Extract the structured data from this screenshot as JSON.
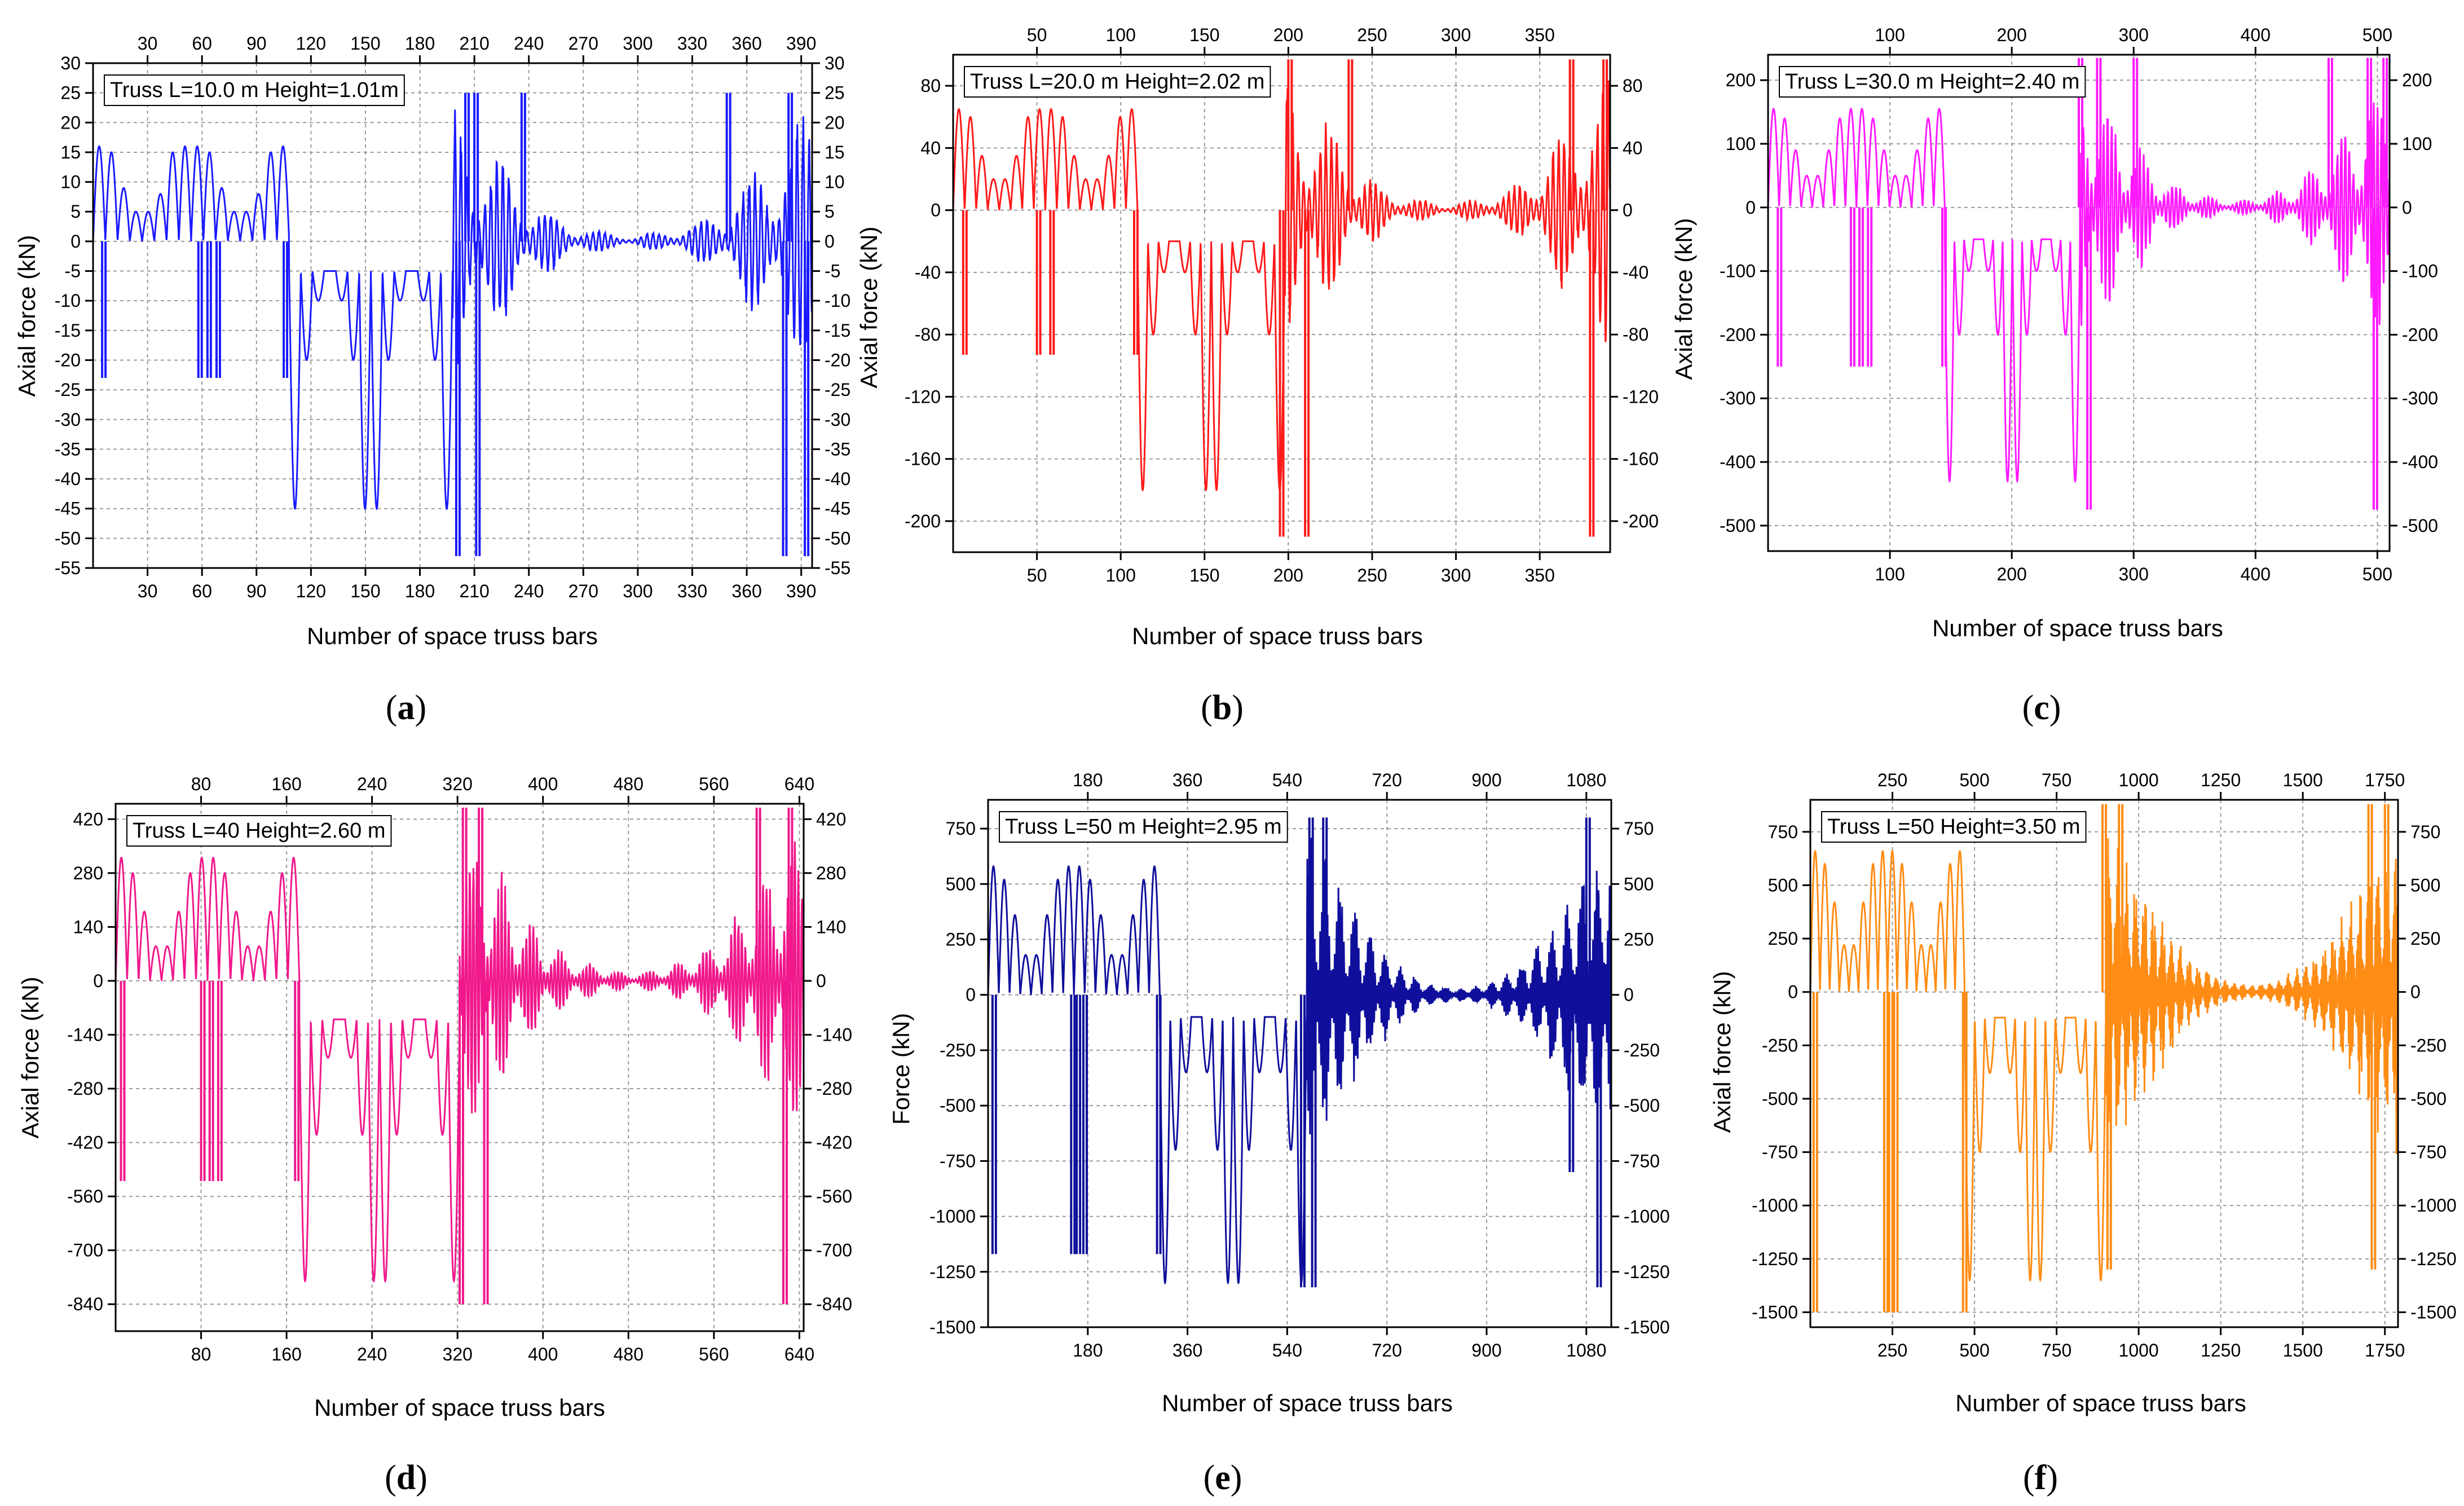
{
  "figure": {
    "panels": [
      "a",
      "b",
      "c",
      "d",
      "e",
      "f"
    ]
  },
  "chart_data": [
    {
      "id": "a",
      "type": "line",
      "color": "#1a1aff",
      "legend": "Truss L=10.0 m Height=1.01m",
      "panel_label": "a",
      "xlabel": "Number of space truss bars",
      "ylabel": "Axial force (kN)",
      "xlim": [
        0,
        396
      ],
      "ylim": [
        -55,
        30
      ],
      "xticks": [
        30,
        60,
        90,
        120,
        150,
        180,
        210,
        240,
        270,
        300,
        330,
        360,
        390
      ],
      "bottom_xticks": [
        30,
        60,
        90,
        120,
        150,
        180,
        210,
        240,
        270,
        300,
        330,
        360,
        390
      ],
      "top_xticks": [
        30,
        60,
        90,
        120,
        150,
        180,
        210,
        240,
        270,
        300,
        330,
        360,
        390
      ],
      "yticks": [
        30,
        25,
        20,
        15,
        10,
        5,
        0,
        -5,
        -10,
        -15,
        -20,
        -25,
        -30,
        -35,
        -40,
        -45,
        -50,
        -55
      ],
      "ytick_labels": [
        "30",
        "25",
        "20",
        "15",
        "10",
        "5",
        "0",
        "-5",
        "-10",
        "-15",
        "-20",
        "-25",
        "-30",
        "-35",
        "-40",
        "-45",
        "-50",
        "-55"
      ],
      "segments": [
        {
          "kind": "bumps",
          "x": [
            0,
            108
          ],
          "peaks": [
            16,
            15,
            9,
            5,
            5,
            8,
            15,
            16,
            16,
            15,
            9,
            5,
            5,
            8,
            15,
            16
          ],
          "base": 0
        },
        {
          "kind": "bumps",
          "x": [
            108,
            198
          ],
          "peaks": [
            -45,
            -20,
            -10,
            -5,
            -10,
            -20,
            -45,
            -45,
            -20,
            -10,
            -5,
            -10,
            -20,
            -45
          ],
          "base": -5,
          "invert": true
        },
        {
          "kind": "osc",
          "x": [
            198,
            396
          ],
          "amp": [
            25,
            18,
            10,
            4,
            2,
            1,
            2,
            4,
            10,
            18,
            25
          ]
        }
      ],
      "spikes": [
        [
          5,
          -23
        ],
        [
          58,
          -23
        ],
        [
          63,
          -23
        ],
        [
          68,
          -23
        ],
        [
          105,
          -23
        ],
        [
          200,
          -53
        ],
        [
          205,
          25
        ],
        [
          210,
          25
        ],
        [
          211,
          -53
        ],
        [
          236,
          25
        ],
        [
          349,
          25
        ],
        [
          380,
          -53
        ],
        [
          383,
          25
        ],
        [
          392,
          -53
        ]
      ]
    },
    {
      "id": "b",
      "type": "line",
      "color": "#ff1a1a",
      "legend": "Truss L=20.0 m Height=2.02 m",
      "panel_label": "b",
      "xlabel": "Number of space truss bars",
      "ylabel": "Axial force (kN)",
      "xlim": [
        0,
        392
      ],
      "ylim": [
        -220,
        100
      ],
      "bottom_xticks": [
        50,
        100,
        150,
        200,
        250,
        300,
        350
      ],
      "top_xticks": [
        50,
        100,
        150,
        200,
        250,
        300,
        350
      ],
      "yticks": [
        80,
        40,
        0,
        -40,
        -80,
        -120,
        -160,
        -200
      ],
      "ytick_labels": [
        "80",
        "40",
        "0",
        "-40",
        "-80",
        "-120",
        "-160",
        "-200"
      ],
      "segments": [
        {
          "kind": "bumps",
          "x": [
            0,
            110
          ],
          "peaks": [
            65,
            60,
            35,
            20,
            20,
            35,
            60,
            65,
            65,
            60,
            35,
            20,
            20,
            35,
            60,
            65
          ],
          "base": 0
        },
        {
          "kind": "bumps",
          "x": [
            110,
            198
          ],
          "peaks": [
            -180,
            -80,
            -40,
            -20,
            -40,
            -80,
            -180,
            -180,
            -80,
            -40,
            -20,
            -40,
            -80,
            -180
          ],
          "base": -20,
          "invert": true
        },
        {
          "kind": "osc",
          "x": [
            198,
            392
          ],
          "amp": [
            95,
            70,
            40,
            15,
            8,
            4,
            8,
            15,
            40,
            70,
            95
          ]
        }
      ],
      "spikes": [
        [
          6,
          -93
        ],
        [
          50,
          -93
        ],
        [
          58,
          -93
        ],
        [
          108,
          -93
        ],
        [
          195,
          -210
        ],
        [
          200,
          97
        ],
        [
          210,
          -210
        ],
        [
          236,
          97
        ],
        [
          368,
          97
        ],
        [
          380,
          -210
        ],
        [
          388,
          97
        ]
      ]
    },
    {
      "id": "c",
      "type": "line",
      "color": "#ff1aff",
      "legend": "Truss L=30.0 m Height=2.40 m",
      "panel_label": "c",
      "xlabel": "Number of space truss bars",
      "ylabel": "Axial force (kN)",
      "xlim": [
        0,
        510
      ],
      "ylim": [
        -540,
        240
      ],
      "bottom_xticks": [
        100,
        200,
        300,
        400,
        500
      ],
      "top_xticks": [
        100,
        200,
        300,
        400,
        500
      ],
      "yticks": [
        200,
        100,
        0,
        -100,
        -200,
        -300,
        -400,
        -500
      ],
      "ytick_labels": [
        "200",
        "100",
        "0",
        "-100",
        "-200",
        "-300",
        "-400",
        "-500"
      ],
      "segments": [
        {
          "kind": "bumps",
          "x": [
            0,
            145
          ],
          "peaks": [
            155,
            140,
            90,
            50,
            50,
            90,
            140,
            155,
            155,
            140,
            90,
            50,
            50,
            90,
            140,
            155
          ],
          "base": 0
        },
        {
          "kind": "bumps",
          "x": [
            145,
            256
          ],
          "peaks": [
            -430,
            -200,
            -100,
            -50,
            -100,
            -200,
            -430,
            -430,
            -200,
            -100,
            -50,
            -100,
            -200,
            -430
          ],
          "base": -50,
          "invert": true
        },
        {
          "kind": "osc",
          "x": [
            256,
            510
          ],
          "amp": [
            235,
            170,
            100,
            40,
            20,
            10,
            20,
            40,
            100,
            170,
            235
          ]
        }
      ],
      "spikes": [
        [
          8,
          -250
        ],
        [
          68,
          -250
        ],
        [
          75,
          -250
        ],
        [
          82,
          -250
        ],
        [
          143,
          -250
        ],
        [
          255,
          235
        ],
        [
          262,
          -475
        ],
        [
          270,
          235
        ],
        [
          300,
          235
        ],
        [
          460,
          235
        ],
        [
          492,
          235
        ],
        [
          497,
          -475
        ],
        [
          505,
          235
        ]
      ]
    },
    {
      "id": "d",
      "type": "line",
      "color": "#f0188c",
      "legend": "Truss L=40 Height=2.60 m",
      "panel_label": "d",
      "xlabel": "Number of space truss bars",
      "ylabel": "Axial force (kN)",
      "xlim": [
        0,
        644
      ],
      "ylim": [
        -910,
        460
      ],
      "bottom_xticks": [
        80,
        160,
        240,
        320,
        400,
        480,
        560,
        640
      ],
      "top_xticks": [
        80,
        160,
        240,
        320,
        400,
        480,
        560,
        640
      ],
      "yticks": [
        420,
        280,
        140,
        0,
        -140,
        -280,
        -420,
        -560,
        -700,
        -840
      ],
      "ytick_labels": [
        "420",
        "280",
        "140",
        "0",
        "-140",
        "-280",
        "-420",
        "-560",
        "-700",
        "-840"
      ],
      "segments": [
        {
          "kind": "bumps",
          "x": [
            0,
            172
          ],
          "peaks": [
            320,
            280,
            180,
            90,
            90,
            180,
            280,
            320,
            320,
            280,
            180,
            90,
            90,
            180,
            280,
            320
          ],
          "base": 0
        },
        {
          "kind": "bumps",
          "x": [
            172,
            322
          ],
          "peaks": [
            -780,
            -400,
            -200,
            -100,
            -200,
            -400,
            -780,
            -780,
            -400,
            -200,
            -100,
            -200,
            -400,
            -780
          ],
          "base": -100,
          "invert": true
        },
        {
          "kind": "osc",
          "x": [
            322,
            644
          ],
          "amp": [
            450,
            320,
            180,
            80,
            40,
            20,
            40,
            80,
            180,
            320,
            450
          ]
        }
      ],
      "spikes": [
        [
          5,
          -520
        ],
        [
          80,
          -520
        ],
        [
          88,
          -520
        ],
        [
          96,
          -520
        ],
        [
          168,
          -520
        ],
        [
          325,
          450
        ],
        [
          322,
          -840
        ],
        [
          340,
          450
        ],
        [
          345,
          -840
        ],
        [
          600,
          450
        ],
        [
          625,
          -840
        ],
        [
          630,
          450
        ]
      ]
    },
    {
      "id": "e",
      "type": "line",
      "color": "#0f0f9c",
      "legend": "Truss L=50 m Height=2.95 m",
      "panel_label": "e",
      "xlabel": "Number of space truss bars",
      "ylabel": "Force (kN)",
      "xlim": [
        0,
        1125
      ],
      "ylim": [
        -1500,
        880
      ],
      "bottom_xticks": [
        180,
        360,
        540,
        720,
        900,
        1080
      ],
      "top_xticks": [
        180,
        360,
        540,
        720,
        900,
        1080
      ],
      "yticks": [
        750,
        500,
        250,
        0,
        -250,
        -500,
        -750,
        -1000,
        -1250,
        -1500
      ],
      "ytick_labels": [
        "750",
        "500",
        "250",
        "0",
        "-250",
        "-500",
        "-750",
        "-1000",
        "-1250",
        "-1500"
      ],
      "segments": [
        {
          "kind": "bumps",
          "x": [
            0,
            310
          ],
          "peaks": [
            580,
            520,
            360,
            180,
            180,
            360,
            520,
            580,
            580,
            520,
            360,
            180,
            180,
            360,
            520,
            580
          ],
          "base": 0
        },
        {
          "kind": "bumps",
          "x": [
            310,
            575
          ],
          "peaks": [
            -1300,
            -700,
            -350,
            -100,
            -350,
            -700,
            -1300,
            -1300,
            -700,
            -350,
            -100,
            -350,
            -700,
            -1300
          ],
          "base": -100,
          "invert": true
        },
        {
          "kind": "osc",
          "x": [
            575,
            1125
          ],
          "amp": [
            800,
            580,
            330,
            150,
            60,
            30,
            60,
            150,
            330,
            580,
            800
          ]
        }
      ],
      "spikes": [
        [
          8,
          -1170
        ],
        [
          150,
          -1170
        ],
        [
          160,
          -1170
        ],
        [
          172,
          -1170
        ],
        [
          305,
          -1170
        ],
        [
          580,
          800
        ],
        [
          565,
          -1320
        ],
        [
          605,
          800
        ],
        [
          585,
          -1320
        ],
        [
          1050,
          -800
        ],
        [
          1080,
          800
        ],
        [
          1100,
          -1320
        ]
      ]
    },
    {
      "id": "f",
      "type": "line",
      "color": "#ff8c14",
      "legend": "Truss L=50 Height=3.50 m",
      "panel_label": "f",
      "xlabel": "Number of space truss bars",
      "ylabel": "Axial force (kN)",
      "xlim": [
        0,
        1790
      ],
      "ylim": [
        -1570,
        900
      ],
      "bottom_xticks": [
        250,
        500,
        750,
        1000,
        1250,
        1500,
        1750
      ],
      "top_xticks": [
        250,
        500,
        750,
        1000,
        1250,
        1500,
        1750
      ],
      "yticks": [
        750,
        500,
        250,
        0,
        -250,
        -500,
        -750,
        -1000,
        -1250,
        -1500
      ],
      "ytick_labels": [
        "750",
        "500",
        "250",
        "0",
        "-250",
        "-500",
        "-750",
        "-1000",
        "-1250",
        "-1500"
      ],
      "segments": [
        {
          "kind": "bumps",
          "x": [
            0,
            470
          ],
          "peaks": [
            660,
            600,
            420,
            220,
            220,
            420,
            600,
            660,
            660,
            600,
            420,
            220,
            220,
            420,
            600,
            660
          ],
          "base": 0
        },
        {
          "kind": "bumps",
          "x": [
            470,
            900
          ],
          "peaks": [
            -1350,
            -750,
            -380,
            -120,
            -380,
            -750,
            -1350,
            -1350,
            -750,
            -380,
            -120,
            -380,
            -750,
            -1350
          ],
          "base": -120,
          "invert": true
        },
        {
          "kind": "osc",
          "x": [
            900,
            1790
          ],
          "amp": [
            880,
            640,
            380,
            170,
            70,
            35,
            70,
            170,
            380,
            640,
            880
          ]
        }
      ],
      "spikes": [
        [
          10,
          -1500
        ],
        [
          225,
          -1500
        ],
        [
          240,
          -1500
        ],
        [
          255,
          -1500
        ],
        [
          465,
          -1500
        ],
        [
          890,
          880
        ],
        [
          905,
          -1300
        ],
        [
          940,
          880
        ],
        [
          1700,
          880
        ],
        [
          1710,
          -1300
        ],
        [
          1750,
          880
        ]
      ]
    }
  ]
}
